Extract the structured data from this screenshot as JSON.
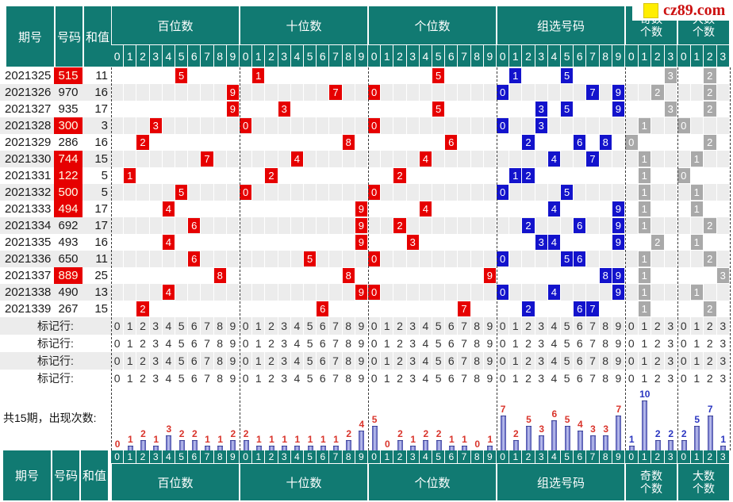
{
  "watermark": {
    "text": "cz89.com"
  },
  "header": {
    "issue_label": "期号",
    "number_label": "号码",
    "sum_label": "和值",
    "sections": [
      {
        "key": "hundreds",
        "label": "百位数",
        "digit_labels": [
          "0",
          "1",
          "2",
          "3",
          "4",
          "5",
          "6",
          "7",
          "8",
          "9"
        ]
      },
      {
        "key": "tens",
        "label": "十位数",
        "digit_labels": [
          "0",
          "1",
          "2",
          "3",
          "4",
          "5",
          "6",
          "7",
          "8",
          "9"
        ]
      },
      {
        "key": "units",
        "label": "个位数",
        "digit_labels": [
          "0",
          "1",
          "2",
          "3",
          "4",
          "5",
          "6",
          "7",
          "8",
          "9"
        ]
      },
      {
        "key": "group",
        "label": "组选号码",
        "digit_labels": [
          "0",
          "1",
          "2",
          "3",
          "4",
          "5",
          "6",
          "7",
          "8",
          "9"
        ]
      },
      {
        "key": "odd",
        "label": "奇数个数",
        "label_lines": [
          "奇数",
          "个数"
        ],
        "digit_labels": [
          "0",
          "1",
          "2",
          "3"
        ]
      },
      {
        "key": "big",
        "label": "大数个数",
        "label_lines": [
          "大数",
          "个数"
        ],
        "digit_labels": [
          "0",
          "1",
          "2",
          "3"
        ]
      }
    ]
  },
  "rows": [
    {
      "issue": "2021325",
      "number": "515",
      "highlight": true,
      "sum": "11",
      "hundreds": 5,
      "tens": 1,
      "units": 5,
      "group": [
        1,
        5
      ],
      "odd_count": 3,
      "big_count": 2
    },
    {
      "issue": "2021326",
      "number": "970",
      "highlight": false,
      "sum": "16",
      "hundreds": 9,
      "tens": 7,
      "units": 0,
      "group": [
        0,
        7,
        9
      ],
      "odd_count": 2,
      "big_count": 2
    },
    {
      "issue": "2021327",
      "number": "935",
      "highlight": false,
      "sum": "17",
      "hundreds": 9,
      "tens": 3,
      "units": 5,
      "group": [
        3,
        5,
        9
      ],
      "odd_count": 3,
      "big_count": 2
    },
    {
      "issue": "2021328",
      "number": "300",
      "highlight": true,
      "sum": "3",
      "hundreds": 3,
      "tens": 0,
      "units": 0,
      "group": [
        0,
        3
      ],
      "odd_count": 1,
      "big_count": 0
    },
    {
      "issue": "2021329",
      "number": "286",
      "highlight": false,
      "sum": "16",
      "hundreds": 2,
      "tens": 8,
      "units": 6,
      "group": [
        2,
        6,
        8
      ],
      "odd_count": 0,
      "big_count": 2
    },
    {
      "issue": "2021330",
      "number": "744",
      "highlight": true,
      "sum": "15",
      "hundreds": 7,
      "tens": 4,
      "units": 4,
      "group": [
        4,
        7
      ],
      "odd_count": 1,
      "big_count": 1
    },
    {
      "issue": "2021331",
      "number": "122",
      "highlight": true,
      "sum": "5",
      "hundreds": 1,
      "tens": 2,
      "units": 2,
      "group": [
        1,
        2
      ],
      "odd_count": 1,
      "big_count": 0
    },
    {
      "issue": "2021332",
      "number": "500",
      "highlight": true,
      "sum": "5",
      "hundreds": 5,
      "tens": 0,
      "units": 0,
      "group": [
        0,
        5
      ],
      "odd_count": 1,
      "big_count": 1
    },
    {
      "issue": "2021333",
      "number": "494",
      "highlight": true,
      "sum": "17",
      "hundreds": 4,
      "tens": 9,
      "units": 4,
      "group": [
        4,
        9
      ],
      "odd_count": 1,
      "big_count": 1
    },
    {
      "issue": "2021334",
      "number": "692",
      "highlight": false,
      "sum": "17",
      "hundreds": 6,
      "tens": 9,
      "units": 2,
      "group": [
        2,
        6,
        9
      ],
      "odd_count": 1,
      "big_count": 2
    },
    {
      "issue": "2021335",
      "number": "493",
      "highlight": false,
      "sum": "16",
      "hundreds": 4,
      "tens": 9,
      "units": 3,
      "group": [
        3,
        4,
        9
      ],
      "odd_count": 2,
      "big_count": 1
    },
    {
      "issue": "2021336",
      "number": "650",
      "highlight": false,
      "sum": "11",
      "hundreds": 6,
      "tens": 5,
      "units": 0,
      "group": [
        0,
        5,
        6
      ],
      "odd_count": 1,
      "big_count": 2
    },
    {
      "issue": "2021337",
      "number": "889",
      "highlight": true,
      "sum": "25",
      "hundreds": 8,
      "tens": 8,
      "units": 9,
      "group": [
        8,
        9
      ],
      "odd_count": 1,
      "big_count": 3
    },
    {
      "issue": "2021338",
      "number": "490",
      "highlight": false,
      "sum": "13",
      "hundreds": 4,
      "tens": 9,
      "units": 0,
      "group": [
        0,
        4,
        9
      ],
      "odd_count": 1,
      "big_count": 1
    },
    {
      "issue": "2021339",
      "number": "267",
      "highlight": false,
      "sum": "15",
      "hundreds": 2,
      "tens": 6,
      "units": 7,
      "group": [
        2,
        6,
        7
      ],
      "odd_count": 1,
      "big_count": 2
    }
  ],
  "mark_rows": {
    "label": "标记行:",
    "count": 4
  },
  "chart_data": {
    "type": "bar",
    "title": "共15期，出现次数:",
    "ylim": [
      0,
      10
    ],
    "legend": "none",
    "grid": false,
    "groups": [
      {
        "name": "百位数",
        "categories": [
          "0",
          "1",
          "2",
          "3",
          "4",
          "5",
          "6",
          "7",
          "8",
          "9"
        ],
        "values": [
          0,
          1,
          2,
          1,
          3,
          2,
          2,
          1,
          1,
          2
        ],
        "label_color": "#d9342b"
      },
      {
        "name": "十位数",
        "categories": [
          "0",
          "1",
          "2",
          "3",
          "4",
          "5",
          "6",
          "7",
          "8",
          "9"
        ],
        "values": [
          2,
          1,
          1,
          1,
          1,
          1,
          1,
          1,
          2,
          4
        ],
        "label_color": "#d9342b"
      },
      {
        "name": "个位数",
        "categories": [
          "0",
          "1",
          "2",
          "3",
          "4",
          "5",
          "6",
          "7",
          "8",
          "9"
        ],
        "values": [
          5,
          0,
          2,
          1,
          2,
          2,
          1,
          1,
          0,
          1
        ],
        "label_color": "#d9342b"
      },
      {
        "name": "组选号码",
        "categories": [
          "0",
          "1",
          "2",
          "3",
          "4",
          "5",
          "6",
          "7",
          "8",
          "9"
        ],
        "values": [
          7,
          2,
          5,
          3,
          6,
          5,
          4,
          3,
          3,
          7
        ],
        "label_color": "#d9342b"
      },
      {
        "name": "奇数个数",
        "categories": [
          "0",
          "1",
          "2",
          "3"
        ],
        "values": [
          1,
          10,
          2,
          2
        ],
        "label_color": "#2a35c0"
      },
      {
        "name": "大数个数",
        "categories": [
          "0",
          "1",
          "2",
          "3"
        ],
        "values": [
          2,
          5,
          7,
          1
        ],
        "label_color": "#2a35c0"
      }
    ]
  },
  "colors": {
    "header_bg": "#117a72",
    "stripe": "#ececec",
    "red_mark": "#e60000",
    "blue_mark": "#1313cc",
    "gray_mark": "#a9a9a9",
    "highlight_number_bg": "#e60000",
    "highlight_number_text": "#fffde8"
  }
}
